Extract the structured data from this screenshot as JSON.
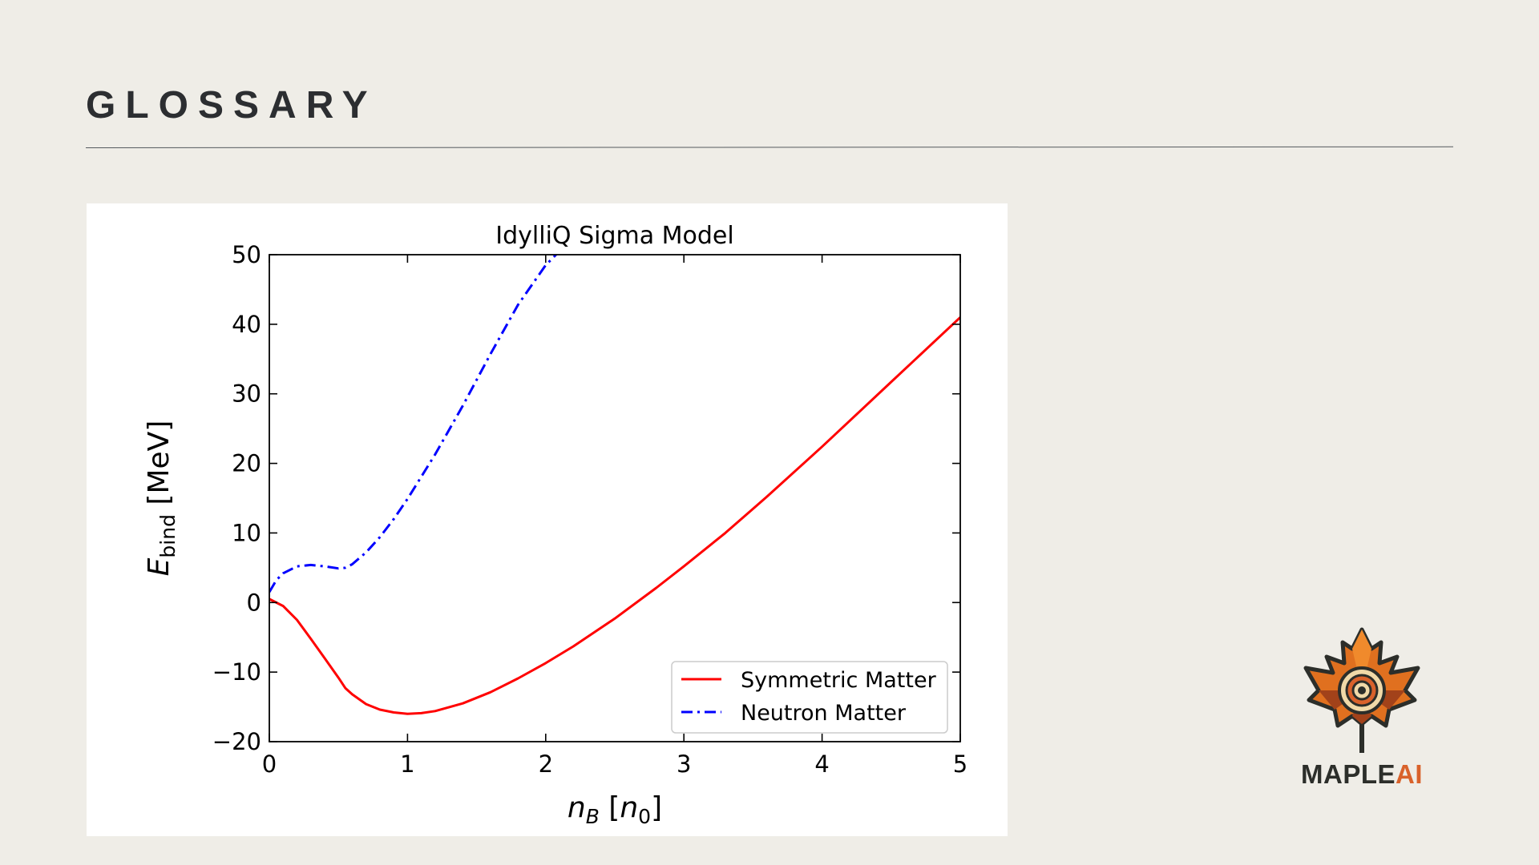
{
  "slide": {
    "title": "GLOSSARY"
  },
  "logo": {
    "word1": "MAPLE",
    "word2": "AI",
    "colors": {
      "dark": "#2c2e2a",
      "accent": "#d9622b",
      "leaf_orange": "#e0701f",
      "leaf_dark": "#a2421a",
      "ring_cream": "#f0d9a8"
    }
  },
  "colors": {
    "background": "#efede7",
    "title": "#2c2e31",
    "panel": "#ffffff"
  },
  "chart_data": {
    "type": "line",
    "title": "IdylliQ Sigma Model",
    "xlabel_main": "n",
    "xlabel_sub": "B",
    "xlabel_unit_main": "n",
    "xlabel_unit_sub": "0",
    "ylabel_main": "E",
    "ylabel_sub": "bind",
    "ylabel_unit": "[MeV]",
    "xlim": [
      0,
      5
    ],
    "ylim": [
      -20,
      50
    ],
    "xticks": [
      0,
      1,
      2,
      3,
      4,
      5
    ],
    "xtick_labels": [
      "0",
      "1",
      "2",
      "3",
      "4",
      "5"
    ],
    "yticks": [
      -20,
      -10,
      0,
      10,
      20,
      30,
      40,
      50
    ],
    "ytick_labels": [
      "−20",
      "−10",
      "0",
      "10",
      "20",
      "30",
      "40",
      "50"
    ],
    "grid": false,
    "legend_position": "lower-right",
    "series": [
      {
        "name": "Symmetric Matter",
        "color": "#ff0000",
        "style": "solid",
        "x": [
          0,
          0.1,
          0.2,
          0.3,
          0.4,
          0.5,
          0.55,
          0.6,
          0.7,
          0.8,
          0.9,
          1.0,
          1.1,
          1.2,
          1.4,
          1.6,
          1.8,
          2.0,
          2.2,
          2.5,
          2.8,
          3.0,
          3.3,
          3.6,
          4.0,
          4.5,
          5.0
        ],
        "y": [
          0.5,
          -0.5,
          -2.5,
          -5.2,
          -8.0,
          -10.8,
          -12.3,
          -13.2,
          -14.6,
          -15.4,
          -15.8,
          -16.0,
          -15.9,
          -15.6,
          -14.5,
          -12.9,
          -10.9,
          -8.7,
          -6.3,
          -2.3,
          2.1,
          5.2,
          10.0,
          15.2,
          22.4,
          31.7,
          41.0
        ]
      },
      {
        "name": "Neutron Matter",
        "color": "#0000ff",
        "style": "dashdot",
        "x": [
          0,
          0.05,
          0.1,
          0.2,
          0.3,
          0.4,
          0.5,
          0.55,
          0.6,
          0.7,
          0.8,
          0.9,
          1.0,
          1.2,
          1.4,
          1.6,
          1.8,
          2.0,
          2.1
        ],
        "y": [
          1.5,
          3.2,
          4.2,
          5.2,
          5.4,
          5.2,
          4.9,
          5.0,
          5.5,
          7.2,
          9.4,
          12.0,
          14.9,
          21.3,
          28.3,
          35.7,
          42.8,
          48.5,
          50.5
        ]
      }
    ]
  }
}
